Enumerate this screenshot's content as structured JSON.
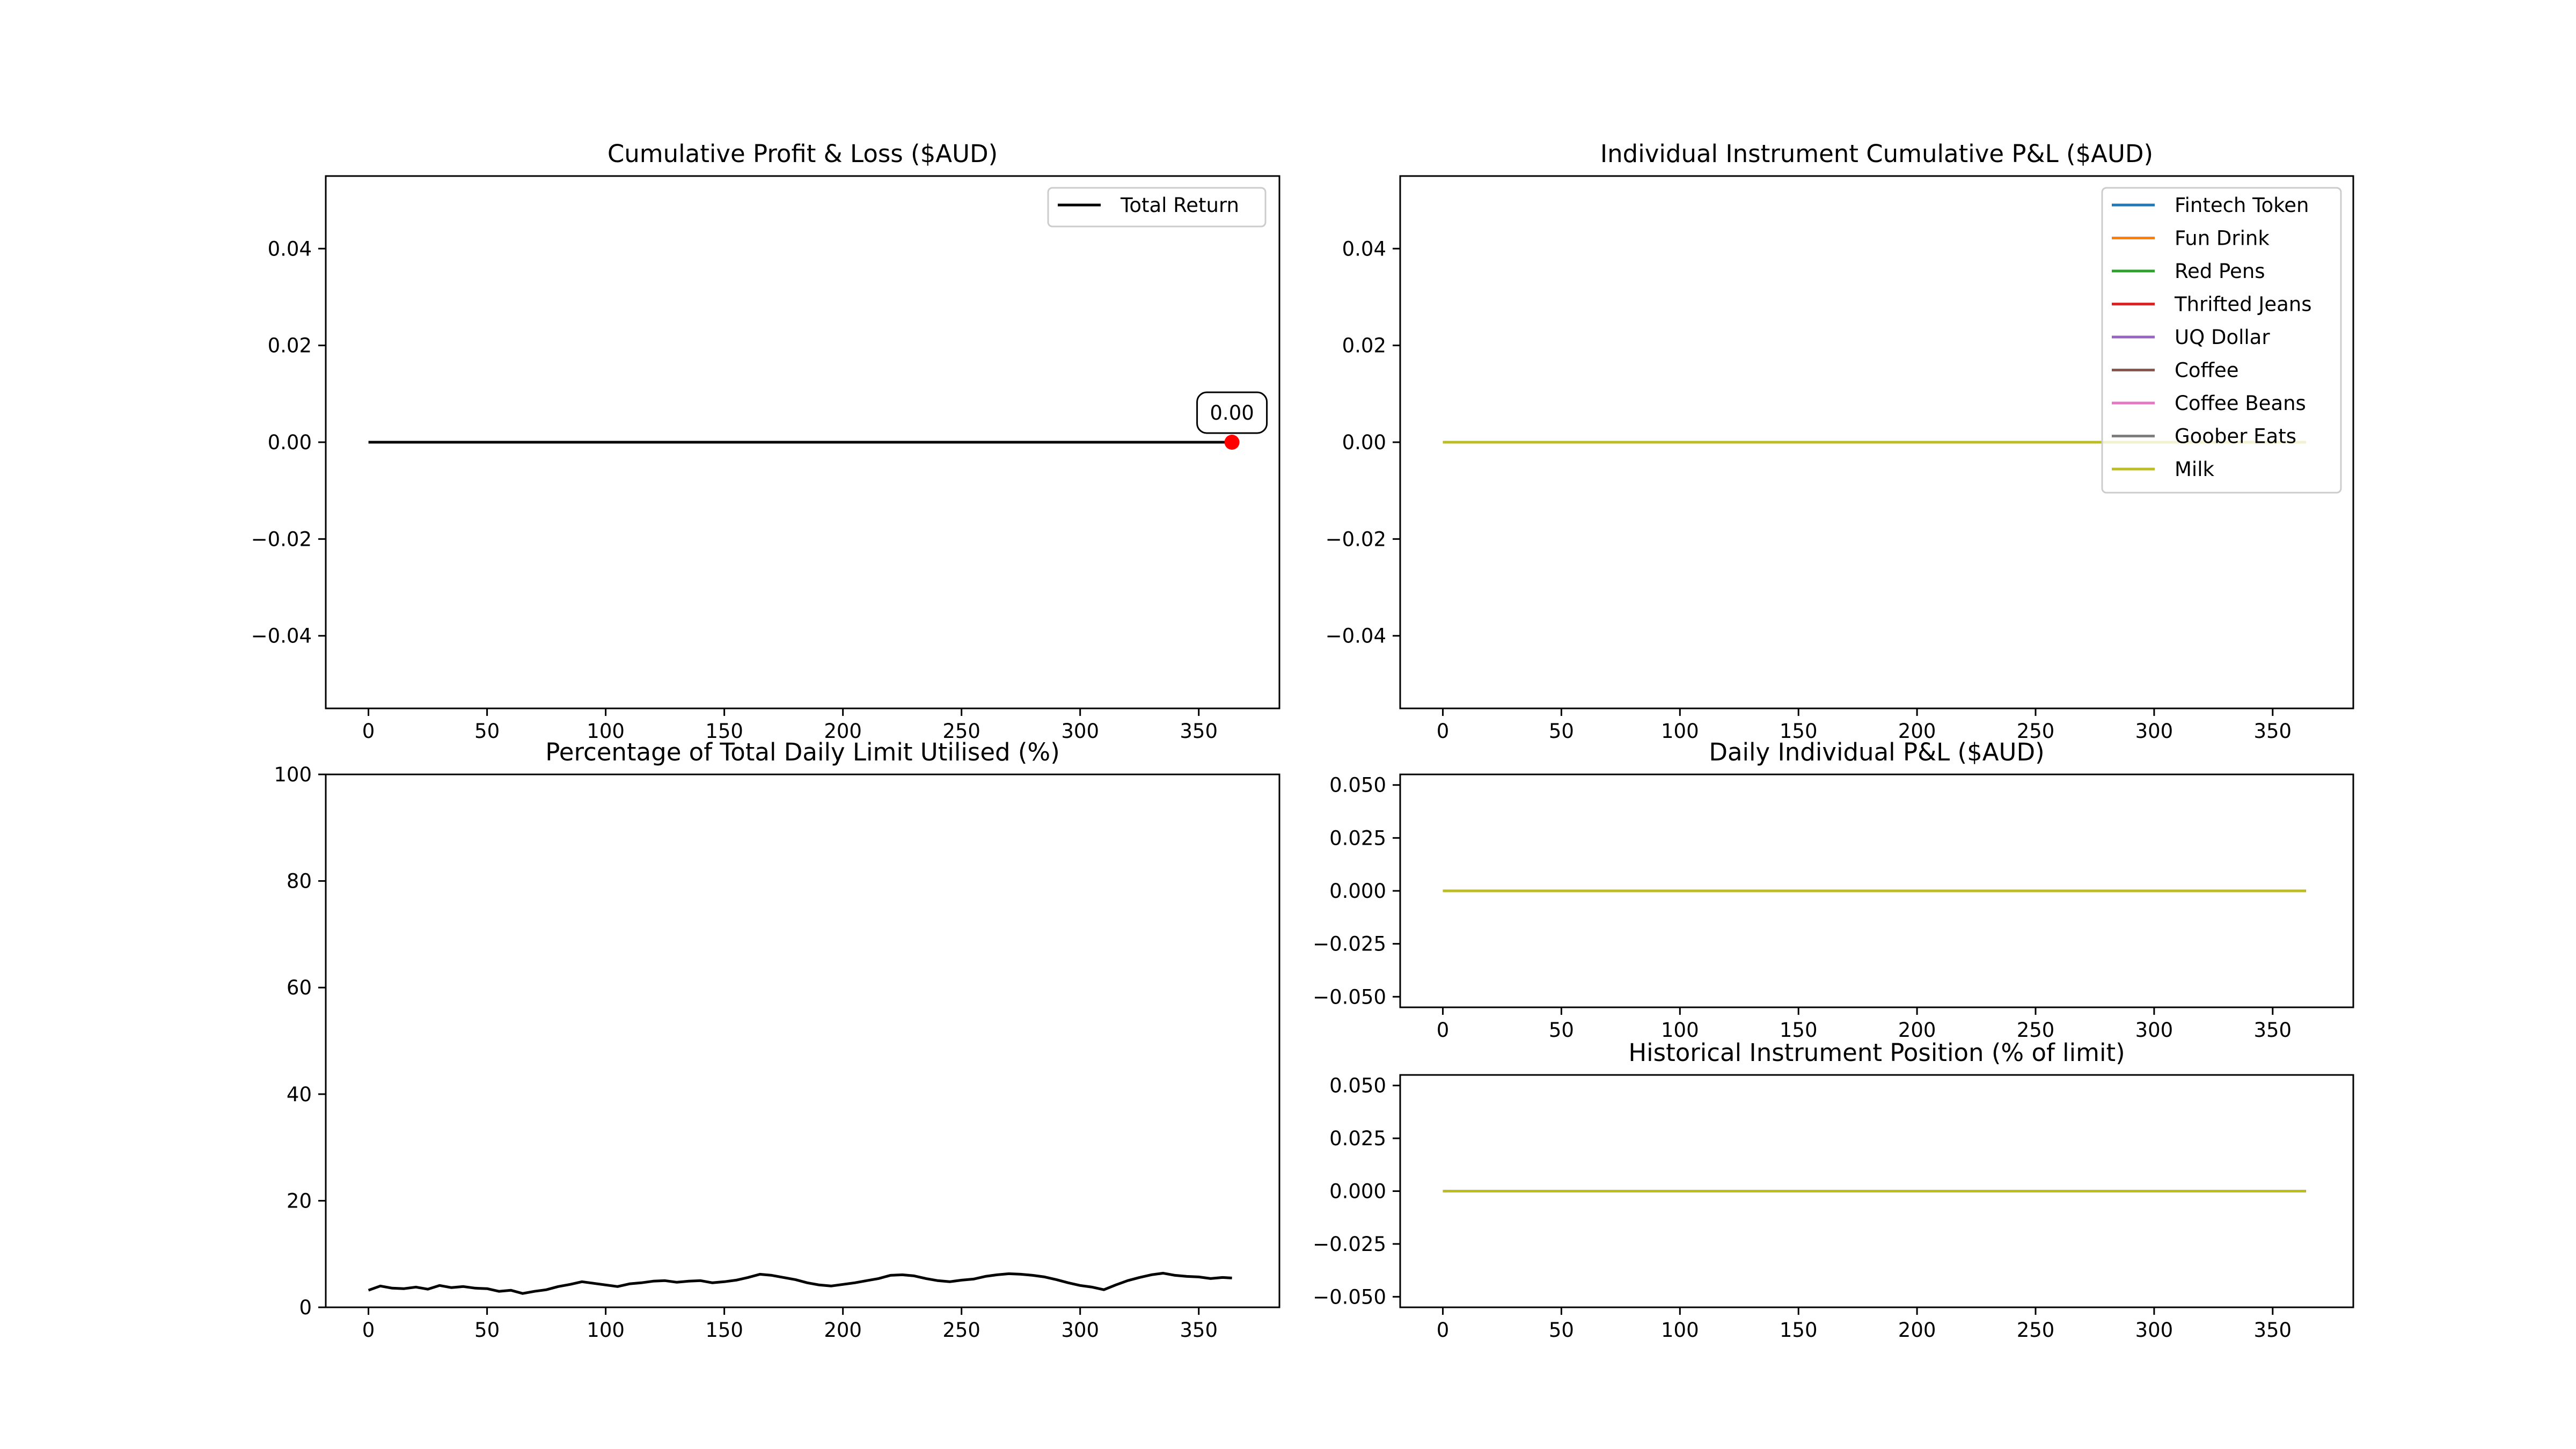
{
  "chart_data": [
    {
      "id": "cumulative",
      "type": "line",
      "title": "Cumulative Profit & Loss ($AUD)",
      "xlim": [
        -18,
        384
      ],
      "ylim": [
        -0.055,
        0.055
      ],
      "xticks": [
        0,
        50,
        100,
        150,
        200,
        250,
        300,
        350
      ],
      "yticks": [
        -0.04,
        -0.02,
        0.0,
        0.02,
        0.04
      ],
      "ytick_labels": [
        "−0.04",
        "−0.02",
        "0.00",
        "0.02",
        "0.04"
      ],
      "legend_position": "top-right",
      "series": [
        {
          "name": "Total Return",
          "color": "#000000",
          "x": [
            0,
            364
          ],
          "y": [
            0,
            0
          ]
        }
      ],
      "marker": {
        "x": 364,
        "y": 0,
        "color": "#ff0000"
      },
      "annotation": {
        "text": "0.00",
        "x": 364,
        "y": 0
      }
    },
    {
      "id": "individual",
      "type": "line",
      "title": "Individual Instrument Cumulative P&L ($AUD)",
      "xlim": [
        -18,
        384
      ],
      "ylim": [
        -0.055,
        0.055
      ],
      "xticks": [
        0,
        50,
        100,
        150,
        200,
        250,
        300,
        350
      ],
      "yticks": [
        -0.04,
        -0.02,
        0.0,
        0.02,
        0.04
      ],
      "ytick_labels": [
        "−0.04",
        "−0.02",
        "0.00",
        "0.02",
        "0.04"
      ],
      "legend_position": "top-right",
      "series": [
        {
          "name": "Fintech Token",
          "color": "#1f77b4",
          "x": [
            0,
            364
          ],
          "y": [
            0,
            0
          ]
        },
        {
          "name": "Fun Drink",
          "color": "#ff7f0e",
          "x": [
            0,
            364
          ],
          "y": [
            0,
            0
          ]
        },
        {
          "name": "Red Pens",
          "color": "#2ca02c",
          "x": [
            0,
            364
          ],
          "y": [
            0,
            0
          ]
        },
        {
          "name": "Thrifted Jeans",
          "color": "#d62728",
          "x": [
            0,
            364
          ],
          "y": [
            0,
            0
          ]
        },
        {
          "name": "UQ Dollar",
          "color": "#9467bd",
          "x": [
            0,
            364
          ],
          "y": [
            0,
            0
          ]
        },
        {
          "name": "Coffee",
          "color": "#8c564b",
          "x": [
            0,
            364
          ],
          "y": [
            0,
            0
          ]
        },
        {
          "name": "Coffee Beans",
          "color": "#e377c2",
          "x": [
            0,
            364
          ],
          "y": [
            0,
            0
          ]
        },
        {
          "name": "Goober Eats",
          "color": "#7f7f7f",
          "x": [
            0,
            364
          ],
          "y": [
            0,
            0
          ]
        },
        {
          "name": "Milk",
          "color": "#bcbd22",
          "x": [
            0,
            364
          ],
          "y": [
            0,
            0
          ]
        }
      ]
    },
    {
      "id": "utilisation",
      "type": "line",
      "title": "Percentage of Total Daily Limit Utilised (%)",
      "xlim": [
        -18,
        384
      ],
      "ylim": [
        0,
        100
      ],
      "xticks": [
        0,
        50,
        100,
        150,
        200,
        250,
        300,
        350
      ],
      "yticks": [
        0,
        20,
        40,
        60,
        80,
        100
      ],
      "ytick_labels": [
        "0",
        "20",
        "40",
        "60",
        "80",
        "100"
      ],
      "series": [
        {
          "name": "",
          "color": "#000000",
          "x": [
            0,
            5,
            10,
            15,
            20,
            25,
            30,
            35,
            40,
            45,
            50,
            55,
            60,
            65,
            70,
            75,
            80,
            85,
            90,
            95,
            100,
            105,
            110,
            115,
            120,
            125,
            130,
            135,
            140,
            145,
            150,
            155,
            160,
            165,
            170,
            175,
            180,
            185,
            190,
            195,
            200,
            205,
            210,
            215,
            220,
            225,
            230,
            235,
            240,
            245,
            250,
            255,
            260,
            265,
            270,
            275,
            280,
            285,
            290,
            295,
            300,
            305,
            310,
            315,
            320,
            325,
            330,
            335,
            340,
            345,
            350,
            355,
            360,
            364
          ],
          "y": [
            3.2,
            4.0,
            3.6,
            3.5,
            3.8,
            3.4,
            4.1,
            3.7,
            3.9,
            3.6,
            3.5,
            3.0,
            3.2,
            2.6,
            3.0,
            3.3,
            3.9,
            4.3,
            4.8,
            4.5,
            4.2,
            3.9,
            4.4,
            4.6,
            4.9,
            5.0,
            4.7,
            4.9,
            5.0,
            4.6,
            4.8,
            5.1,
            5.6,
            6.2,
            6.0,
            5.6,
            5.2,
            4.6,
            4.2,
            4.0,
            4.3,
            4.6,
            5.0,
            5.4,
            6.0,
            6.1,
            5.9,
            5.4,
            5.0,
            4.8,
            5.1,
            5.3,
            5.8,
            6.1,
            6.3,
            6.2,
            6.0,
            5.7,
            5.2,
            4.6,
            4.1,
            3.8,
            3.3,
            4.2,
            5.0,
            5.6,
            6.1,
            6.4,
            6.0,
            5.8,
            5.7,
            5.4,
            5.6,
            5.5
          ]
        }
      ]
    },
    {
      "id": "daily",
      "type": "line",
      "title": "Daily Individual P&L ($AUD)",
      "xlim": [
        -18,
        384
      ],
      "ylim": [
        -0.055,
        0.055
      ],
      "xticks": [
        0,
        50,
        100,
        150,
        200,
        250,
        300,
        350
      ],
      "yticks": [
        -0.05,
        -0.025,
        0.0,
        0.025,
        0.05
      ],
      "ytick_labels": [
        "−0.050",
        "−0.025",
        "0.000",
        "0.025",
        "0.050"
      ],
      "series": [
        {
          "name": "Fintech Token",
          "color": "#1f77b4",
          "x": [
            0,
            364
          ],
          "y": [
            0,
            0
          ]
        },
        {
          "name": "Fun Drink",
          "color": "#ff7f0e",
          "x": [
            0,
            364
          ],
          "y": [
            0,
            0
          ]
        },
        {
          "name": "Red Pens",
          "color": "#2ca02c",
          "x": [
            0,
            364
          ],
          "y": [
            0,
            0
          ]
        },
        {
          "name": "Thrifted Jeans",
          "color": "#d62728",
          "x": [
            0,
            364
          ],
          "y": [
            0,
            0
          ]
        },
        {
          "name": "UQ Dollar",
          "color": "#9467bd",
          "x": [
            0,
            364
          ],
          "y": [
            0,
            0
          ]
        },
        {
          "name": "Coffee",
          "color": "#8c564b",
          "x": [
            0,
            364
          ],
          "y": [
            0,
            0
          ]
        },
        {
          "name": "Coffee Beans",
          "color": "#e377c2",
          "x": [
            0,
            364
          ],
          "y": [
            0,
            0
          ]
        },
        {
          "name": "Goober Eats",
          "color": "#7f7f7f",
          "x": [
            0,
            364
          ],
          "y": [
            0,
            0
          ]
        },
        {
          "name": "Milk",
          "color": "#bcbd22",
          "x": [
            0,
            364
          ],
          "y": [
            0,
            0
          ]
        }
      ]
    },
    {
      "id": "position",
      "type": "line",
      "title": "Historical Instrument Position (% of limit)",
      "xlim": [
        -18,
        384
      ],
      "ylim": [
        -0.055,
        0.055
      ],
      "xticks": [
        0,
        50,
        100,
        150,
        200,
        250,
        300,
        350
      ],
      "yticks": [
        -0.05,
        -0.025,
        0.0,
        0.025,
        0.05
      ],
      "ytick_labels": [
        "−0.050",
        "−0.025",
        "0.000",
        "0.025",
        "0.050"
      ],
      "series": [
        {
          "name": "Fintech Token",
          "color": "#1f77b4",
          "x": [
            0,
            364
          ],
          "y": [
            0,
            0
          ]
        },
        {
          "name": "Fun Drink",
          "color": "#ff7f0e",
          "x": [
            0,
            364
          ],
          "y": [
            0,
            0
          ]
        },
        {
          "name": "Red Pens",
          "color": "#2ca02c",
          "x": [
            0,
            364
          ],
          "y": [
            0,
            0
          ]
        },
        {
          "name": "Thrifted Jeans",
          "color": "#d62728",
          "x": [
            0,
            364
          ],
          "y": [
            0,
            0
          ]
        },
        {
          "name": "UQ Dollar",
          "color": "#9467bd",
          "x": [
            0,
            364
          ],
          "y": [
            0,
            0
          ]
        },
        {
          "name": "Coffee",
          "color": "#8c564b",
          "x": [
            0,
            364
          ],
          "y": [
            0,
            0
          ]
        },
        {
          "name": "Coffee Beans",
          "color": "#e377c2",
          "x": [
            0,
            364
          ],
          "y": [
            0,
            0
          ]
        },
        {
          "name": "Goober Eats",
          "color": "#7f7f7f",
          "x": [
            0,
            364
          ],
          "y": [
            0,
            0
          ]
        },
        {
          "name": "Milk",
          "color": "#bcbd22",
          "x": [
            0,
            364
          ],
          "y": [
            0,
            0
          ]
        }
      ]
    }
  ]
}
